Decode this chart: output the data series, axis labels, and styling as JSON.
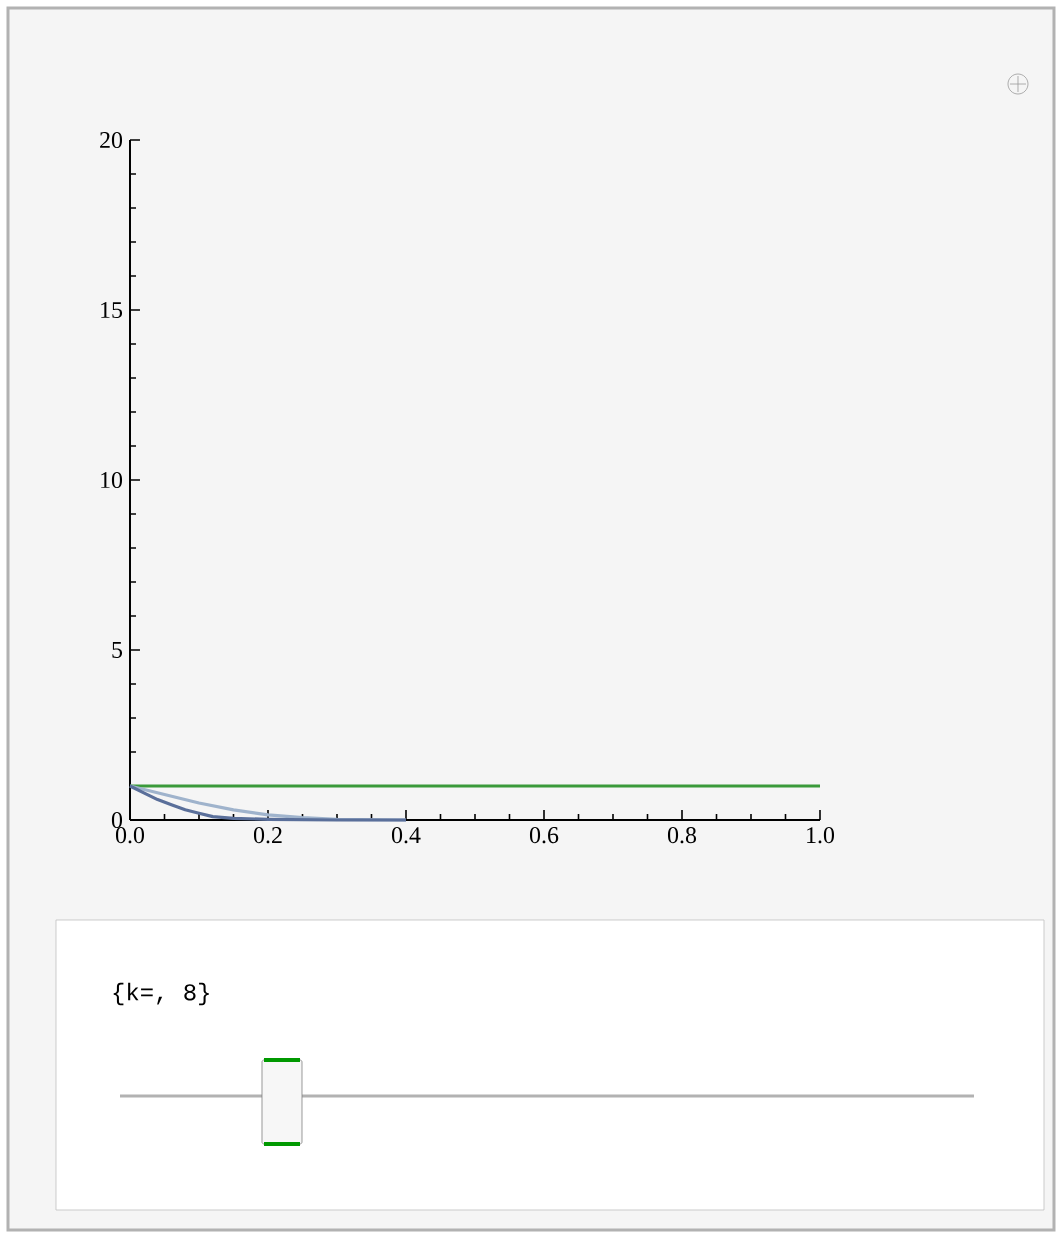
{
  "chart_data": {
    "type": "line",
    "xlim": [
      0,
      1
    ],
    "ylim": [
      0,
      20
    ],
    "xticks": [
      {
        "value": 0,
        "label": "0.0"
      },
      0.2,
      0.4,
      0.6,
      0.8,
      {
        "value": 1,
        "label": "1.0"
      }
    ],
    "yticks": [
      0,
      5,
      10,
      15,
      20
    ],
    "series": [
      {
        "color": "#3a9a3a",
        "x": [
          0,
          1
        ],
        "values": [
          1,
          1
        ]
      },
      {
        "color": "#9fb3cc",
        "x": [
          0,
          0.05,
          0.1,
          0.15,
          0.2,
          0.25,
          0.3,
          0.4
        ],
        "values": [
          1,
          0.75,
          0.5,
          0.3,
          0.15,
          0.07,
          0.02,
          0
        ]
      },
      {
        "color": "#5a6f9a",
        "x": [
          0,
          0.02,
          0.04,
          0.06,
          0.08,
          0.1,
          0.12,
          0.15,
          0.2,
          0.3,
          0.4
        ],
        "values": [
          1,
          0.8,
          0.6,
          0.45,
          0.3,
          0.2,
          0.1,
          0.05,
          0.02,
          0,
          0
        ]
      }
    ],
    "annotations": [
      "{k=, 8}"
    ]
  }
}
